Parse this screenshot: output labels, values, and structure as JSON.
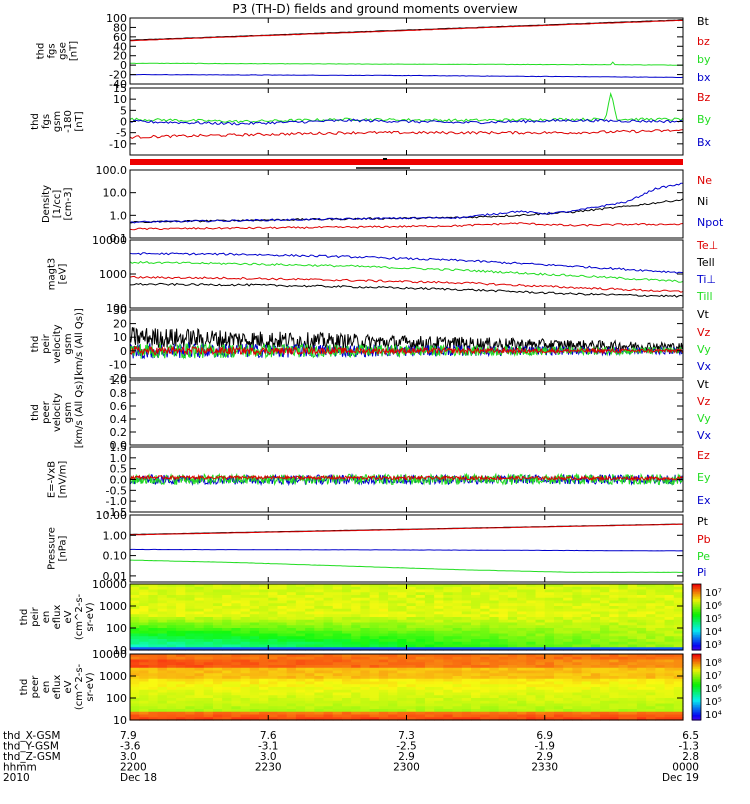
{
  "title": "P3 (TH-D) fields and ground moments overview",
  "colors": {
    "black": "#000000",
    "red": "#dd0000",
    "green": "#22dd22",
    "blue": "#0000cc"
  },
  "chart_data": [
    {
      "type": "line",
      "panel": "fgs-gse",
      "ylabel": [
        "thd",
        "fgs",
        "gse",
        "[nT]"
      ],
      "ylim": [
        -40,
        100
      ],
      "yticks": [
        "100",
        "80",
        "60",
        "40",
        "20",
        "0",
        "-20",
        "-40"
      ],
      "yticks_values": [
        100,
        80,
        60,
        40,
        20,
        0,
        -20,
        -40
      ],
      "legend": [
        {
          "name": "Bt",
          "color": "#000000"
        },
        {
          "name": "bz",
          "color": "#dd0000"
        },
        {
          "name": "by",
          "color": "#22dd22"
        },
        {
          "name": "bx",
          "color": "#0000cc"
        }
      ],
      "series": [
        {
          "name": "Bt",
          "x": [
            0,
            1
          ],
          "values": [
            53,
            96
          ]
        },
        {
          "name": "bz",
          "x": [
            0,
            1
          ],
          "values": [
            52,
            95
          ]
        },
        {
          "name": "by",
          "x": [
            0,
            0.5,
            0.87,
            0.872,
            0.875,
            1
          ],
          "values": [
            4,
            2,
            1,
            10,
            1,
            0
          ]
        },
        {
          "name": "bx",
          "x": [
            0,
            0.5,
            1
          ],
          "values": [
            -20,
            -22,
            -26
          ]
        }
      ]
    },
    {
      "type": "line",
      "panel": "fgs-gsm-dtrnd",
      "ylabel": [
        "thd",
        "fgs",
        "gsm",
        "-180",
        "[nT]"
      ],
      "ylim": [
        -15,
        15
      ],
      "yticks": [
        "15",
        "10",
        "5",
        "0",
        "-5",
        "-10"
      ],
      "yticks_values": [
        15,
        10,
        5,
        0,
        -5,
        -10
      ],
      "legend": [
        {
          "name": "Bz",
          "color": "#dd0000"
        },
        {
          "name": "By",
          "color": "#22dd22"
        },
        {
          "name": "Bx",
          "color": "#0000cc"
        }
      ],
      "series": [
        {
          "name": "By",
          "x": [
            0,
            0.2,
            0.4,
            0.6,
            0.8,
            0.86,
            0.87,
            0.88,
            1
          ],
          "values": [
            1,
            0,
            1,
            0.5,
            1,
            1,
            14,
            1,
            1
          ]
        },
        {
          "name": "Bx",
          "x": [
            0,
            0.2,
            0.4,
            0.6,
            0.8,
            1
          ],
          "values": [
            0,
            -1,
            0.5,
            -0.5,
            0.5,
            0
          ]
        },
        {
          "name": "Bz",
          "x": [
            0,
            0.2,
            0.4,
            0.6,
            0.8,
            1
          ],
          "values": [
            -7,
            -6,
            -5,
            -5,
            -5,
            -4
          ]
        }
      ]
    },
    {
      "type": "line",
      "panel": "density",
      "ylabel": [
        "Density",
        "[1/cc]",
        "[cm-3]"
      ],
      "ylim": [
        0.1,
        100
      ],
      "yscale": "log",
      "yticks": [
        "100.0",
        "10.0",
        "1.0",
        "0.1"
      ],
      "yticks_values": [
        100,
        10,
        1,
        0.1
      ],
      "legend": [
        {
          "name": "Ne",
          "color": "#dd0000"
        },
        {
          "name": "Ni",
          "color": "#000000"
        },
        {
          "name": "Npot",
          "color": "#0000cc"
        }
      ],
      "series": [
        {
          "name": "Ni",
          "x": [
            0,
            0.2,
            0.4,
            0.6,
            0.7,
            0.8,
            0.9,
            1
          ],
          "values": [
            0.5,
            0.6,
            0.7,
            0.8,
            1.0,
            1.4,
            2.5,
            5
          ]
        },
        {
          "name": "Npot",
          "x": [
            0,
            0.4,
            0.6,
            0.7,
            0.75,
            0.8,
            0.85,
            0.9,
            0.95,
            1
          ],
          "values": [
            0.5,
            0.7,
            0.8,
            1.5,
            1.2,
            1.5,
            2.5,
            4,
            15,
            25
          ]
        },
        {
          "name": "Ne",
          "x": [
            0,
            0.4,
            0.6,
            0.7,
            0.8,
            0.9,
            1
          ],
          "values": [
            0.25,
            0.3,
            0.35,
            0.45,
            0.35,
            0.4,
            0.4
          ]
        }
      ]
    },
    {
      "type": "line",
      "panel": "temperature",
      "ylabel": [
        "magt3",
        "[eV]"
      ],
      "ylim": [
        100,
        10000
      ],
      "yscale": "log",
      "yticks": [
        "10000",
        "1000",
        "100"
      ],
      "yticks_values": [
        10000,
        1000,
        100
      ],
      "legend": [
        {
          "name": "Te⊥",
          "color": "#dd0000"
        },
        {
          "name": "Tell",
          "color": "#000000"
        },
        {
          "name": "Ti⊥",
          "color": "#0000cc"
        },
        {
          "name": "Till",
          "color": "#22dd22"
        }
      ],
      "series": [
        {
          "name": "Ti⊥",
          "x": [
            0,
            0.2,
            0.4,
            0.6,
            0.8,
            1
          ],
          "values": [
            4000,
            3800,
            3200,
            2500,
            1700,
            1100
          ]
        },
        {
          "name": "Till",
          "x": [
            0,
            0.2,
            0.4,
            0.6,
            0.8,
            1
          ],
          "values": [
            2200,
            2000,
            1700,
            1300,
            900,
            600
          ]
        },
        {
          "name": "Te⊥",
          "x": [
            0,
            0.2,
            0.4,
            0.6,
            0.8,
            1
          ],
          "values": [
            800,
            750,
            650,
            550,
            400,
            300
          ]
        },
        {
          "name": "Tell",
          "x": [
            0,
            0.2,
            0.4,
            0.6,
            0.8,
            1
          ],
          "values": [
            500,
            480,
            420,
            350,
            260,
            220
          ]
        }
      ]
    },
    {
      "type": "line",
      "panel": "ion-velocity",
      "ylabel": [
        "thd",
        "peir",
        "velocity",
        "gsm",
        "[km/s (All Qs)]"
      ],
      "ylim": [
        -20,
        30
      ],
      "yticks": [
        "30",
        "20",
        "10",
        "0",
        "-10",
        "-20"
      ],
      "yticks_values": [
        30,
        20,
        10,
        0,
        -10,
        -20
      ],
      "legend": [
        {
          "name": "Vt",
          "color": "#000000"
        },
        {
          "name": "Vz",
          "color": "#dd0000"
        },
        {
          "name": "Vy",
          "color": "#22dd22"
        },
        {
          "name": "Vx",
          "color": "#0000cc"
        }
      ],
      "series": [
        {
          "name": "Vt",
          "x": [
            0,
            0.5,
            1
          ],
          "values": [
            10,
            6,
            3
          ]
        },
        {
          "name": "Vx",
          "x": [
            0,
            0.5,
            1
          ],
          "values": [
            0,
            0,
            0
          ]
        },
        {
          "name": "Vy",
          "x": [
            0,
            0.5,
            1
          ],
          "values": [
            0,
            0,
            0
          ]
        },
        {
          "name": "Vz",
          "x": [
            0,
            0.5,
            1
          ],
          "values": [
            0,
            0,
            0
          ]
        }
      ]
    },
    {
      "type": "line",
      "panel": "electron-velocity",
      "ylabel": [
        "thd",
        "peer",
        "velocity",
        "gsm",
        "[km/s (All Qs)]"
      ],
      "ylim": [
        0,
        1
      ],
      "yticks": [
        "1.0",
        "0.8",
        "0.6",
        "0.4",
        "0.2",
        "0.0"
      ],
      "yticks_values": [
        1.0,
        0.8,
        0.6,
        0.4,
        0.2,
        0.0
      ],
      "legend": [
        {
          "name": "Vt",
          "color": "#000000"
        },
        {
          "name": "Vz",
          "color": "#dd0000"
        },
        {
          "name": "Vy",
          "color": "#22dd22"
        },
        {
          "name": "Vx",
          "color": "#0000cc"
        }
      ],
      "series": []
    },
    {
      "type": "line",
      "panel": "efield",
      "ylabel": [
        "E=-VxB",
        "[mV/m]"
      ],
      "ylim": [
        -1.5,
        1.5
      ],
      "yticks": [
        "1.5",
        "1.0",
        "0.5",
        "0.0",
        "-0.5",
        "-1.0",
        "-1.5"
      ],
      "yticks_values": [
        1.5,
        1.0,
        0.5,
        0.0,
        -0.5,
        -1.0,
        -1.5
      ],
      "legend": [
        {
          "name": "Ez",
          "color": "#dd0000"
        },
        {
          "name": "Ey",
          "color": "#22dd22"
        },
        {
          "name": "Ex",
          "color": "#0000cc"
        }
      ],
      "series": [
        {
          "name": "Ex",
          "x": [
            0,
            1
          ],
          "values": [
            0,
            0
          ]
        },
        {
          "name": "Ey",
          "x": [
            0,
            1
          ],
          "values": [
            0,
            0
          ]
        },
        {
          "name": "Ez",
          "x": [
            0,
            1
          ],
          "values": [
            0.1,
            0.05
          ]
        }
      ]
    },
    {
      "type": "line",
      "panel": "pressure",
      "ylabel": [
        "Pressure",
        "[nPa]"
      ],
      "ylim": [
        0.005,
        10
      ],
      "yscale": "log",
      "yticks": [
        "10.00",
        "1.00",
        "0.10",
        "0.01"
      ],
      "yticks_values": [
        10,
        1,
        0.1,
        0.01
      ],
      "legend": [
        {
          "name": "Pt",
          "color": "#000000"
        },
        {
          "name": "Pb",
          "color": "#dd0000"
        },
        {
          "name": "Pe",
          "color": "#22dd22"
        },
        {
          "name": "Pi",
          "color": "#0000cc"
        }
      ],
      "series": [
        {
          "name": "Pt",
          "x": [
            0,
            1
          ],
          "values": [
            1.1,
            3.6
          ]
        },
        {
          "name": "Pb",
          "x": [
            0,
            1
          ],
          "values": [
            1.05,
            3.5
          ]
        },
        {
          "name": "Pi",
          "x": [
            0,
            0.5,
            1
          ],
          "values": [
            0.2,
            0.19,
            0.17
          ]
        },
        {
          "name": "Pe",
          "x": [
            0,
            0.2,
            0.4,
            0.6,
            0.8,
            1
          ],
          "values": [
            0.06,
            0.045,
            0.03,
            0.02,
            0.015,
            0.015
          ]
        }
      ]
    },
    {
      "type": "heatmap",
      "panel": "ion-eflux",
      "ylabel": [
        "thd",
        "peir",
        "en",
        "eflux",
        "eV",
        "(cm^2-s-",
        "sr-eV)"
      ],
      "ylim": [
        10,
        10000
      ],
      "yscale": "log",
      "yticks": [
        "10000",
        "1000",
        "100",
        "10"
      ],
      "yticks_values": [
        10000,
        1000,
        100,
        10
      ],
      "colorbar": {
        "min_exp": 3,
        "max_exp": 7,
        "labels": [
          "10⁷",
          "10⁶",
          "10⁵",
          "10⁴",
          "10³"
        ]
      }
    },
    {
      "type": "heatmap",
      "panel": "electron-eflux",
      "ylabel": [
        "thd",
        "peer",
        "en",
        "eflux",
        "eV",
        "(cm^2-s-",
        "sr-eV)"
      ],
      "ylim": [
        10,
        10000
      ],
      "yscale": "log",
      "yticks": [
        "10000",
        "1000",
        "100",
        "10"
      ],
      "yticks_values": [
        10000,
        1000,
        100,
        10
      ],
      "colorbar": {
        "min_exp": 4,
        "max_exp": 8,
        "labels": [
          "10⁸",
          "10⁷",
          "10⁶",
          "10⁵",
          "10⁴"
        ]
      }
    }
  ],
  "xaxis": {
    "rows": [
      {
        "label": "thd_X-GSM",
        "values": [
          "7.9",
          "7.6",
          "7.3",
          "6.9",
          "6.5"
        ]
      },
      {
        "label": "thd_Y-GSM",
        "values": [
          "-3.6",
          "-3.1",
          "-2.5",
          "-1.9",
          "-1.3"
        ]
      },
      {
        "label": "thd_Z-GSM",
        "values": [
          "3.0",
          "3.0",
          "2.9",
          "2.9",
          "2.8"
        ]
      },
      {
        "label": "hhmm",
        "values": [
          "2200",
          "2230",
          "2300",
          "2330",
          "0000"
        ]
      },
      {
        "label": "2010",
        "values": [
          "Dec 18",
          "",
          "",
          "",
          "Dec 19"
        ]
      }
    ]
  }
}
